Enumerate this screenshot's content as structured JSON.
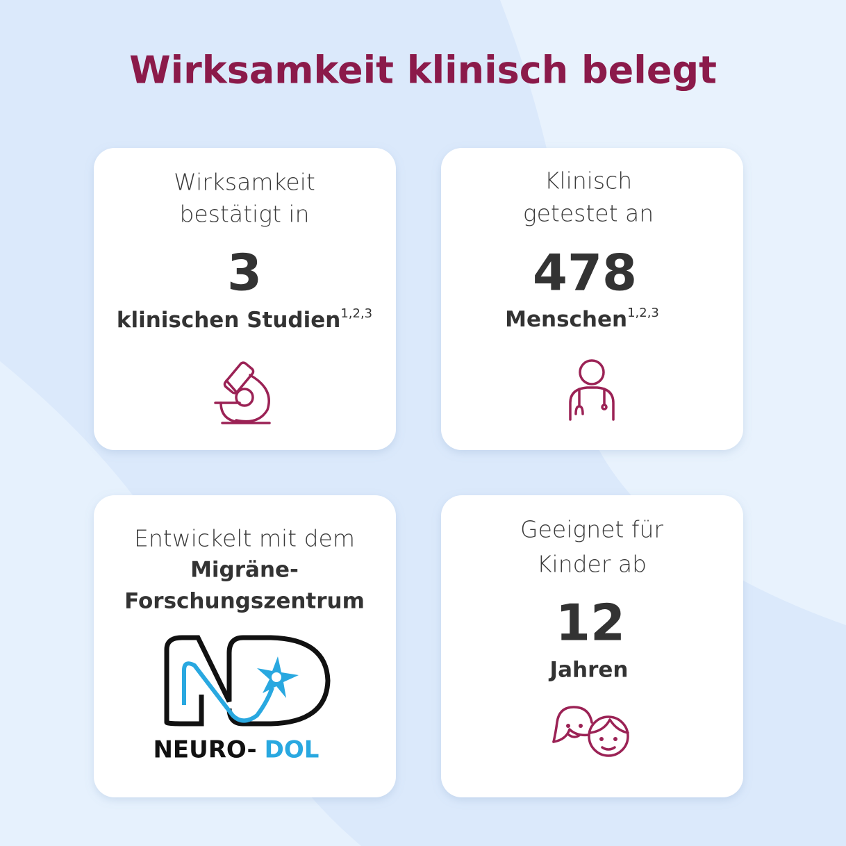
{
  "header": {
    "title": "Wirksamkeit klinisch belegt"
  },
  "cards": [
    {
      "lines": [
        "Wirksamkeit",
        "bestätigt in"
      ],
      "number": 3,
      "label": "klinischen Studien",
      "sup": "1,2,3"
    },
    {
      "lines": [
        "Klinisch",
        "getestet an"
      ],
      "number": 478,
      "label": "Menschen",
      "sup": "1,2,3"
    },
    {
      "lines": [
        "Entwickelt mit dem"
      ],
      "bold_lines": [
        "Migräne-",
        "Forschungszentrum"
      ],
      "logo": [
        "NEURO-",
        "DOL"
      ]
    },
    {
      "lines": [
        "Geeignet für",
        "Kinder ab"
      ],
      "number": 12,
      "label": "Jahren"
    }
  ]
}
